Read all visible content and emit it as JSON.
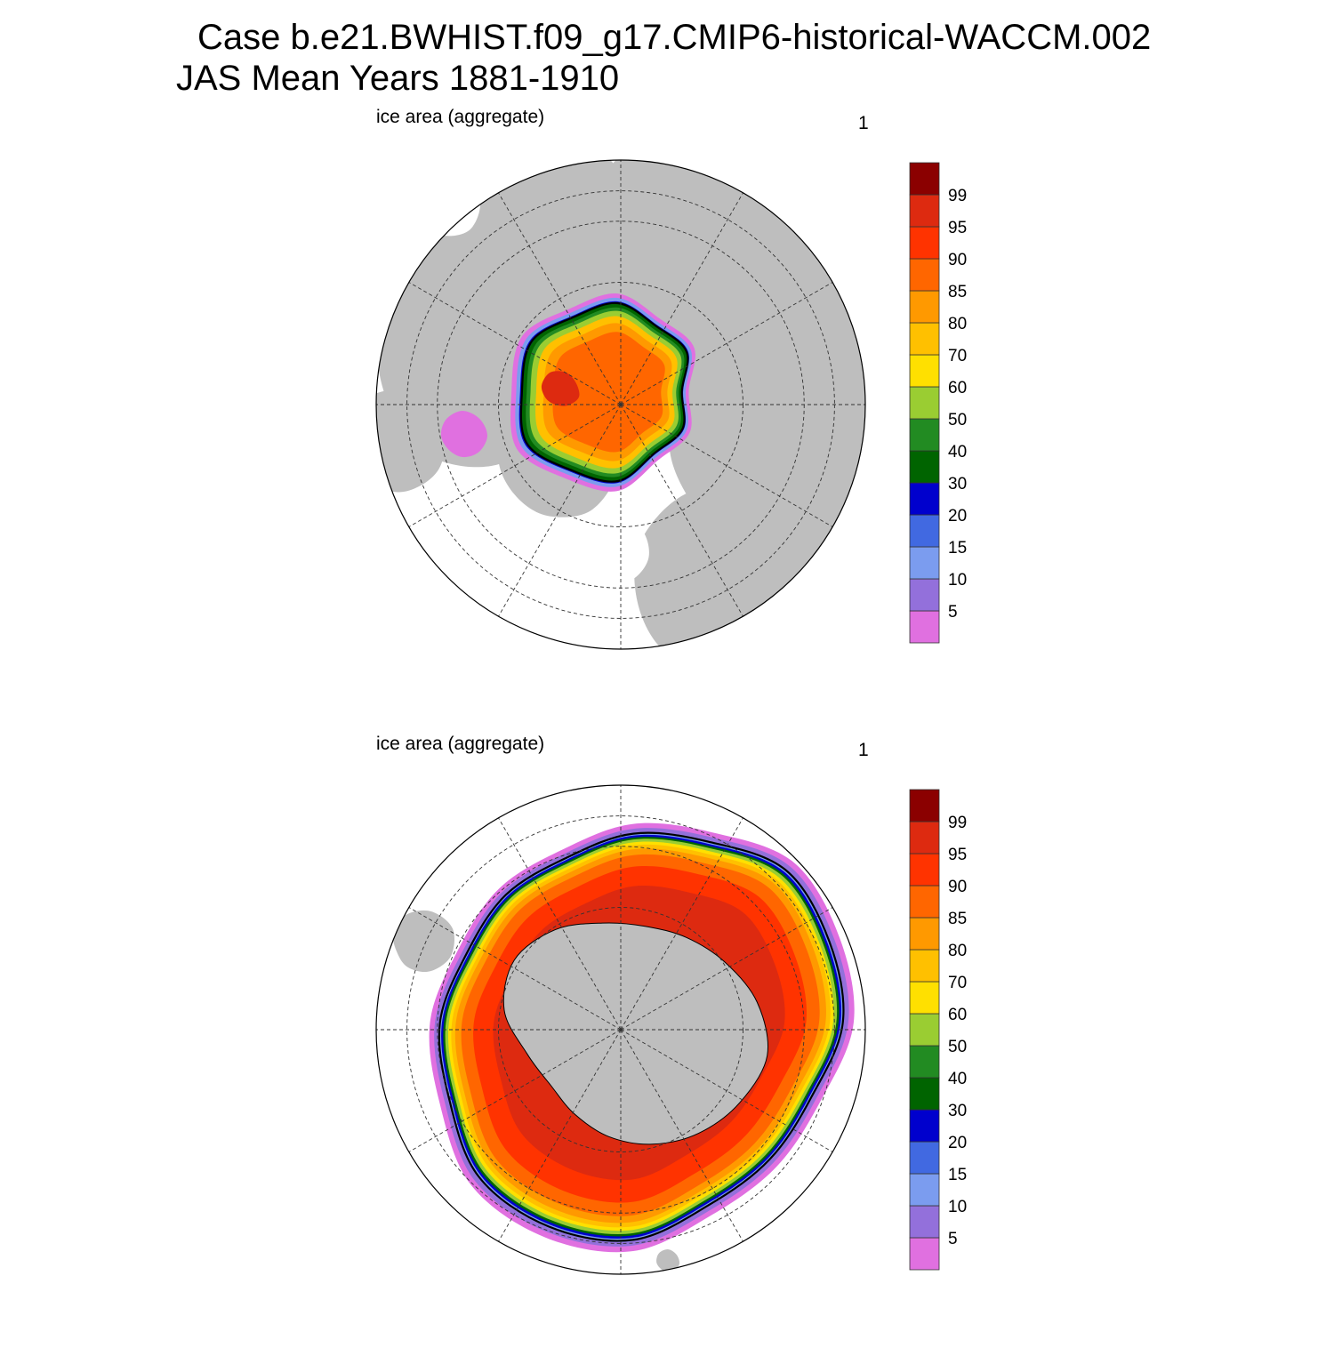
{
  "title": {
    "line1": "Case b.e21.BWHIST.f09_g17.CMIP6-historical-WACCM.002",
    "line2": "JAS Mean   Years 1881-1910"
  },
  "panels": [
    {
      "id": "nh",
      "left_label": "ice area  (aggregate)",
      "right_label": "1",
      "hemisphere": "north"
    },
    {
      "id": "sh",
      "left_label": "ice area  (aggregate)",
      "right_label": "1",
      "hemisphere": "south"
    }
  ],
  "colorbar": {
    "labels": [
      "5",
      "10",
      "15",
      "20",
      "30",
      "40",
      "50",
      "60",
      "70",
      "80",
      "85",
      "90",
      "95",
      "99"
    ],
    "colors": [
      "#e070e0",
      "#9370db",
      "#7b9cef",
      "#4169e1",
      "#0000cd",
      "#006400",
      "#228b22",
      "#9acd32",
      "#ffe000",
      "#ffc000",
      "#ff9900",
      "#ff6600",
      "#ff3300",
      "#dd2a10",
      "#8b0000"
    ]
  },
  "map_colors": {
    "land": "#bebebe",
    "ocean": "#ffffff",
    "contour": "#000000"
  }
}
